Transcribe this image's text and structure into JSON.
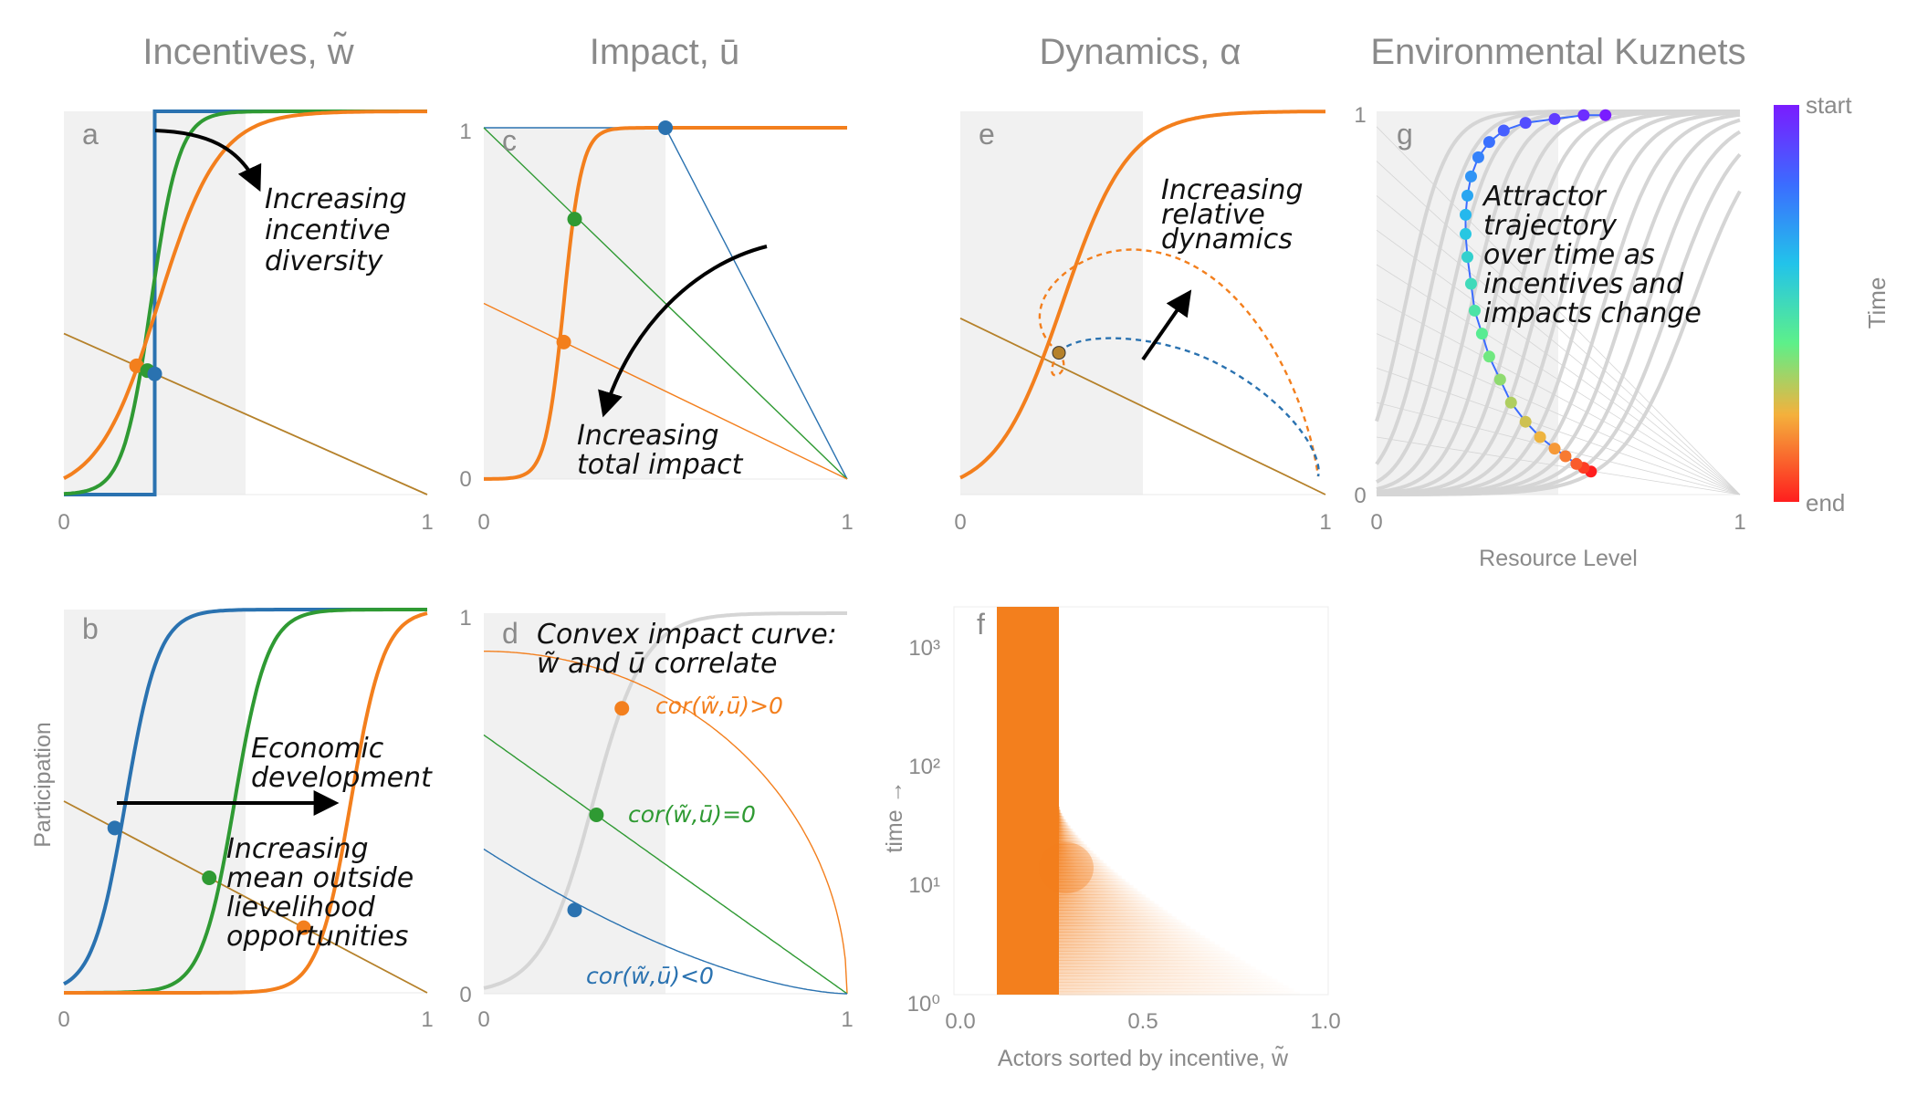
{
  "column_titles": [
    "Incentives, w̃",
    "Impact, ū",
    "Dynamics, α",
    "Environmental Kuznets"
  ],
  "colors": {
    "blue": "#2a72b0",
    "green": "#2f9a33",
    "orange": "#f37f1d",
    "brown": "#b5812a",
    "shade": "#f1f1f1",
    "gray_curve": "#d5d5d5",
    "arrow": "#000000"
  },
  "chart_data": [
    {
      "panel": "a",
      "type": "line",
      "column": "Incentives, w̃",
      "xlim": [
        0,
        1
      ],
      "ylim": [
        0,
        1
      ],
      "x_ticks": [
        "0",
        "1"
      ],
      "y_ticks": [],
      "shaded_x": [
        0,
        0.5
      ],
      "series": [
        {
          "color": "blue",
          "kind": "step",
          "threshold": 0.25
        },
        {
          "color": "green",
          "kind": "logistic",
          "midpoint": 0.24,
          "steepness": 26
        },
        {
          "color": "orange",
          "kind": "logistic",
          "midpoint": 0.26,
          "steepness": 12
        }
      ],
      "outside_line": {
        "color": "brown",
        "from": [
          0,
          0.42
        ],
        "to": [
          1,
          0
        ]
      },
      "equilibria": [
        {
          "color": "orange",
          "x": 0.2
        },
        {
          "color": "green",
          "x": 0.23
        },
        {
          "color": "blue",
          "x": 0.25
        }
      ],
      "annotation": [
        "Increasing",
        "incentive",
        "diversity"
      ]
    },
    {
      "panel": "b",
      "type": "line",
      "column": "Incentives, w̃",
      "xlim": [
        0,
        1
      ],
      "ylim": [
        0,
        1
      ],
      "x_ticks": [
        "0",
        "1"
      ],
      "y_ticks": [],
      "ylabel": "Participation",
      "shaded_x": [
        0,
        0.5
      ],
      "series": [
        {
          "color": "blue",
          "kind": "logistic",
          "midpoint": 0.17,
          "steepness": 22
        },
        {
          "color": "green",
          "kind": "logistic",
          "midpoint": 0.47,
          "steepness": 22
        },
        {
          "color": "orange",
          "kind": "logistic",
          "midpoint": 0.79,
          "steepness": 22
        }
      ],
      "outside_line": {
        "color": "brown",
        "from": [
          0,
          0.5
        ],
        "to": [
          1,
          0
        ]
      },
      "equilibria": [
        {
          "color": "blue",
          "x": 0.14
        },
        {
          "color": "green",
          "x": 0.4
        },
        {
          "color": "orange",
          "x": 0.66
        }
      ],
      "annotations": [
        [
          "Economic",
          "development"
        ],
        [
          "Increasing",
          "mean outside",
          "lievelihood",
          "opportunities"
        ]
      ]
    },
    {
      "panel": "c",
      "type": "line",
      "column": "Impact, ū",
      "xlim": [
        0,
        1
      ],
      "ylim": [
        0,
        1
      ],
      "x_ticks": [
        "0",
        "1"
      ],
      "y_ticks": [
        "0",
        "1"
      ],
      "shaded_x": [
        0,
        0.5
      ],
      "participation_curve": {
        "color": "orange",
        "midpoint": 0.22,
        "steepness": 40
      },
      "impact_lines": [
        {
          "color": "blue",
          "points": [
            [
              0,
              1
            ],
            [
              0.5,
              1
            ],
            [
              1,
              0
            ]
          ]
        },
        {
          "color": "green",
          "points": [
            [
              0,
              1
            ],
            [
              1,
              0
            ]
          ]
        },
        {
          "color": "orange",
          "points": [
            [
              0,
              0.5
            ],
            [
              1,
              0
            ]
          ]
        }
      ],
      "equilibria": [
        {
          "color": "blue",
          "x": 0.5,
          "y": 1.0
        },
        {
          "color": "green",
          "x": 0.25,
          "y": 0.74
        },
        {
          "color": "orange",
          "x": 0.22,
          "y": 0.39
        }
      ],
      "annotation": [
        "Increasing",
        "total impact"
      ]
    },
    {
      "panel": "d",
      "type": "line",
      "column": "Impact, ū",
      "xlim": [
        0,
        1
      ],
      "ylim": [
        0,
        1
      ],
      "x_ticks": [
        "0",
        "1"
      ],
      "y_ticks": [
        "0",
        "1"
      ],
      "shaded_x": [
        0,
        0.5
      ],
      "participation_curve": {
        "color": "gray_curve",
        "midpoint": 0.3,
        "steepness": 14
      },
      "impact_curves": [
        {
          "color": "orange",
          "shape": "concave",
          "y0": 0.9,
          "label": "cor(w̃,ū)>0"
        },
        {
          "color": "green",
          "shape": "linear",
          "y0": 0.68,
          "label": "cor(w̃,ū)=0"
        },
        {
          "color": "blue",
          "shape": "convex",
          "y0": 0.38,
          "label": "cor(w̃,ū)<0"
        }
      ],
      "equilibria": [
        {
          "color": "orange",
          "x": 0.38,
          "y": 0.75
        },
        {
          "color": "green",
          "x": 0.31,
          "y": 0.47
        },
        {
          "color": "blue",
          "x": 0.25,
          "y": 0.22
        }
      ],
      "annotation": [
        "Convex impact curve:",
        "w̃ and ū correlate"
      ]
    },
    {
      "panel": "e",
      "type": "line",
      "column": "Dynamics, α",
      "xlim": [
        0,
        1
      ],
      "ylim": [
        0,
        1
      ],
      "x_ticks": [
        "0",
        "1"
      ],
      "y_ticks": [],
      "shaded_x": [
        0,
        0.5
      ],
      "participation_curve": {
        "color": "orange",
        "midpoint": 0.28,
        "steepness": 11
      },
      "outside_line": {
        "color": "brown",
        "from": [
          0,
          0.46
        ],
        "to": [
          1,
          0
        ]
      },
      "equilibrium": {
        "x": 0.27,
        "y": 0.37
      },
      "trajectories": [
        {
          "color": "orange",
          "style": "dashed",
          "loop": "large"
        },
        {
          "color": "blue",
          "style": "dashed",
          "loop": "small"
        }
      ],
      "annotation": [
        "Increasing",
        "relative",
        "dynamics"
      ]
    },
    {
      "panel": "f",
      "type": "heatmap",
      "column": "Dynamics, α",
      "xlabel": "Actors sorted by incentive, w̃",
      "ylabel": "time →",
      "xlim": [
        0,
        1
      ],
      "x_ticks": [
        "0.0",
        "0.5",
        "1.0"
      ],
      "y_scale": "log",
      "ylim": [
        1,
        2000
      ],
      "y_ticks": [
        "10⁰",
        "10¹",
        "10²",
        "10³"
      ],
      "color": "orange",
      "description_values": {
        "late_time_band": [
          0.1,
          0.27
        ],
        "early_time_spread_to": 0.93
      }
    },
    {
      "panel": "g",
      "type": "line",
      "column": "Environmental Kuznets",
      "xlabel": "Resource Level",
      "xlim": [
        0,
        1
      ],
      "ylim": [
        0,
        1
      ],
      "x_ticks": [
        "0",
        "1"
      ],
      "y_ticks": [
        "0",
        "1"
      ],
      "shaded_x": [
        0,
        0.5
      ],
      "background_curve_count": 14,
      "colorbar": {
        "top_label": "start",
        "bottom_label": "end",
        "title": "Time"
      },
      "attractor_trajectory": [
        [
          0.59,
          0.06
        ],
        [
          0.57,
          0.07
        ],
        [
          0.55,
          0.08
        ],
        [
          0.52,
          0.1
        ],
        [
          0.49,
          0.12
        ],
        [
          0.45,
          0.15
        ],
        [
          0.41,
          0.19
        ],
        [
          0.37,
          0.24
        ],
        [
          0.34,
          0.3
        ],
        [
          0.31,
          0.36
        ],
        [
          0.29,
          0.42
        ],
        [
          0.27,
          0.48
        ],
        [
          0.26,
          0.55
        ],
        [
          0.25,
          0.62
        ],
        [
          0.245,
          0.68
        ],
        [
          0.245,
          0.73
        ],
        [
          0.25,
          0.78
        ],
        [
          0.26,
          0.83
        ],
        [
          0.28,
          0.88
        ],
        [
          0.31,
          0.92
        ],
        [
          0.35,
          0.95
        ],
        [
          0.41,
          0.97
        ],
        [
          0.49,
          0.98
        ],
        [
          0.57,
          0.99
        ],
        [
          0.63,
          0.99
        ]
      ],
      "annotation": [
        "Attractor",
        "trajectory",
        "over time as",
        "incentives and",
        "impacts change"
      ]
    }
  ]
}
